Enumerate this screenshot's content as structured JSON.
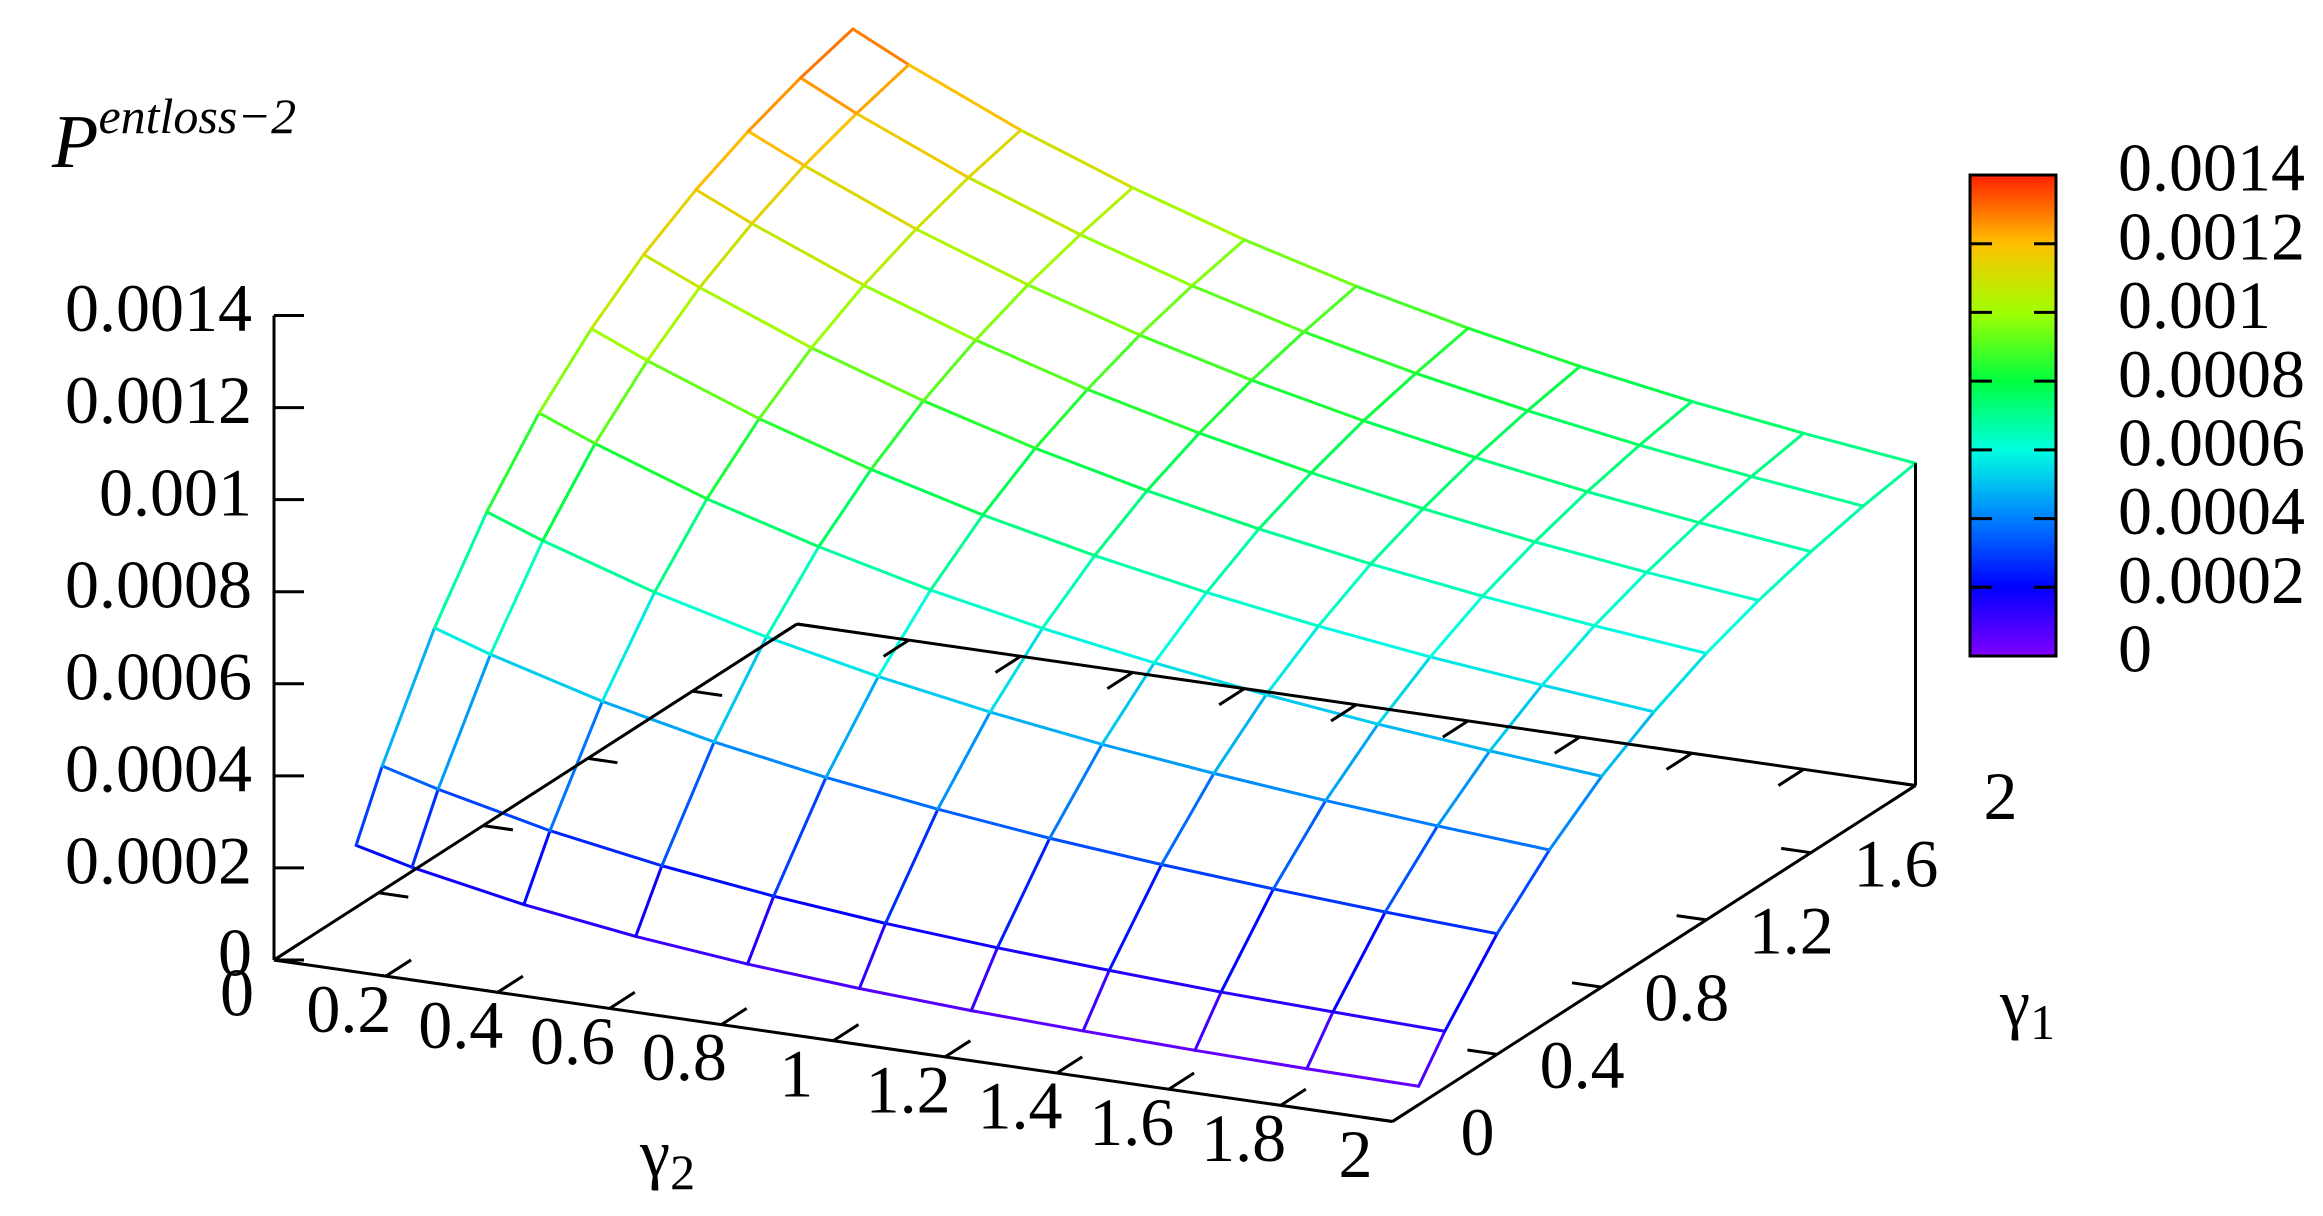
{
  "chart_data": {
    "type": "surface",
    "zlabel": {
      "text": "P",
      "sup": "entloss−2"
    },
    "xlabel": {
      "text": "γ",
      "sub": "2"
    },
    "ylabel": {
      "text": "γ",
      "sub": "1"
    },
    "x": [
      0.1,
      0.2,
      0.4,
      0.6,
      0.8,
      1.0,
      1.2,
      1.4,
      1.6,
      1.8,
      2.0
    ],
    "y": [
      0.1,
      0.2,
      0.4,
      0.6,
      0.8,
      1.0,
      1.2,
      1.4,
      1.6,
      1.8,
      2.0
    ],
    "z": [
      [
        0.00023,
        0.0002,
        0.000154,
        0.00012,
        9.5e-05,
        7.7e-05,
        6.4e-05,
        5.5e-05,
        4.8e-05,
        4.3e-05,
        4e-05
      ],
      [
        0.000366,
        0.000333,
        0.000278,
        0.000237,
        0.000206,
        0.000182,
        0.000164,
        0.00015,
        0.000138,
        0.00013,
        0.000123
      ],
      [
        0.000593,
        0.000553,
        0.000486,
        0.000433,
        0.000391,
        0.000357,
        0.000329,
        0.000307,
        0.000289,
        0.000274,
        0.000262
      ],
      [
        0.000772,
        0.000727,
        0.00065,
        0.000588,
        0.000537,
        0.000495,
        0.00046,
        0.000432,
        0.000408,
        0.000388,
        0.000371
      ],
      [
        0.000914,
        0.000865,
        0.00078,
        0.000711,
        0.000652,
        0.000604,
        0.000564,
        0.00053,
        0.000501,
        0.000478,
        0.000458
      ],
      [
        0.001024,
        0.000972,
        0.000881,
        0.000806,
        0.000742,
        0.000689,
        0.000644,
        0.000606,
        0.000574,
        0.000548,
        0.000525
      ],
      [
        0.001112,
        0.001058,
        0.000962,
        0.000882,
        0.000814,
        0.000757,
        0.000709,
        0.000668,
        0.000633,
        0.000604,
        0.000579
      ],
      [
        0.00118,
        0.001124,
        0.001025,
        0.000941,
        0.000869,
        0.000809,
        0.000758,
        0.000715,
        0.000678,
        0.000647,
        0.000621
      ],
      [
        0.001234,
        0.001177,
        0.001074,
        0.000988,
        0.000914,
        0.000851,
        0.000798,
        0.000753,
        0.000714,
        0.000682,
        0.000654
      ],
      [
        0.001277,
        0.001217,
        0.001113,
        0.001024,
        0.000948,
        0.000883,
        0.000828,
        0.000782,
        0.000742,
        0.000709,
        0.00068
      ],
      [
        0.00131,
        0.00125,
        0.001143,
        0.001053,
        0.000975,
        0.000909,
        0.000853,
        0.000805,
        0.000764,
        0.00073,
        0.0007
      ]
    ],
    "xlim": [
      0,
      2
    ],
    "ylim": [
      0,
      2
    ],
    "zlim": [
      0,
      0.0014
    ],
    "xticks": [
      0,
      0.2,
      0.4,
      0.6,
      0.8,
      1,
      1.2,
      1.4,
      1.6,
      1.8,
      2
    ],
    "yticks": [
      0,
      0.4,
      0.8,
      1.2,
      1.6,
      2
    ],
    "zticks": [
      0,
      0.0002,
      0.0004,
      0.0006,
      0.0008,
      0.001,
      0.0012,
      0.0014
    ],
    "cblim": [
      0,
      0.0014
    ],
    "cbticks": [
      0,
      0.0002,
      0.0004,
      0.0006,
      0.0008,
      0.001,
      0.0012,
      0.0014
    ],
    "palette": [
      "#8000ff",
      "#0000ff",
      "#0080ff",
      "#00ffe0",
      "#00ff40",
      "#a0ff00",
      "#ffc000",
      "#ff2000"
    ]
  }
}
